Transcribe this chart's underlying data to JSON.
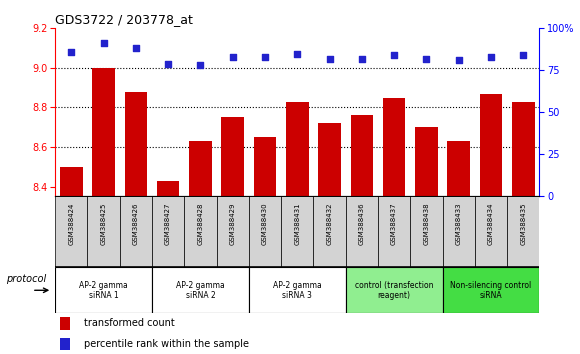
{
  "title": "GDS3722 / 203778_at",
  "samples": [
    "GSM388424",
    "GSM388425",
    "GSM388426",
    "GSM388427",
    "GSM388428",
    "GSM388429",
    "GSM388430",
    "GSM388431",
    "GSM388432",
    "GSM388436",
    "GSM388437",
    "GSM388438",
    "GSM388433",
    "GSM388434",
    "GSM388435"
  ],
  "bar_values": [
    8.5,
    9.0,
    8.88,
    8.43,
    8.63,
    8.75,
    8.65,
    8.83,
    8.72,
    8.76,
    8.85,
    8.7,
    8.63,
    8.87,
    8.83
  ],
  "dot_values": [
    86,
    91,
    88,
    79,
    78,
    83,
    83,
    85,
    82,
    82,
    84,
    82,
    81,
    83,
    84
  ],
  "ylim_left": [
    8.35,
    9.2
  ],
  "ylim_right": [
    0,
    100
  ],
  "yticks_left": [
    8.4,
    8.6,
    8.8,
    9.0,
    9.2
  ],
  "yticks_right": [
    0,
    25,
    50,
    75,
    100
  ],
  "bar_color": "#cc0000",
  "dot_color": "#2222cc",
  "groups": [
    {
      "label": "AP-2 gamma\nsiRNA 1",
      "indices": [
        0,
        1,
        2
      ],
      "bg": "#ffffff"
    },
    {
      "label": "AP-2 gamma\nsiRNA 2",
      "indices": [
        3,
        4,
        5
      ],
      "bg": "#ffffff"
    },
    {
      "label": "AP-2 gamma\nsiRNA 3",
      "indices": [
        6,
        7,
        8
      ],
      "bg": "#ffffff"
    },
    {
      "label": "control (transfection\nreagent)",
      "indices": [
        9,
        10,
        11
      ],
      "bg": "#90ee90"
    },
    {
      "label": "Non-silencing control\nsiRNA",
      "indices": [
        12,
        13,
        14
      ],
      "bg": "#44dd44"
    }
  ],
  "protocol_label": "protocol",
  "legend_bar_label": "transformed count",
  "legend_dot_label": "percentile rank within the sample",
  "sample_bg_color": "#d3d3d3",
  "grid_color": "#000000",
  "bar_bottom": 8.35
}
